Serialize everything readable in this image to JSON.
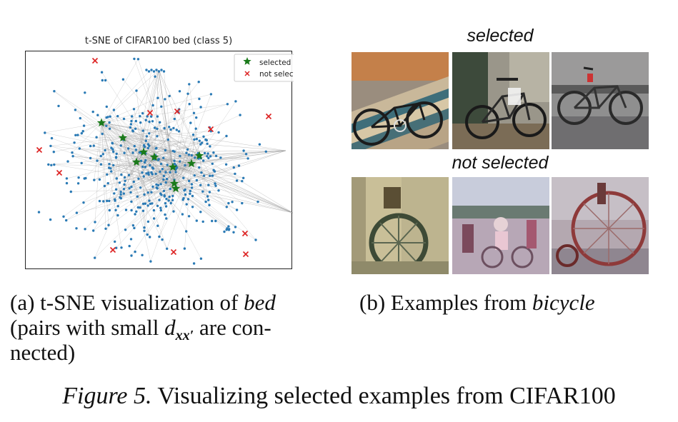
{
  "figure": {
    "plot_title": "t-SNE of CIFAR100 bed (class 5)",
    "legend": {
      "selected": "selected",
      "not_selected": "not selected"
    },
    "subcaption_a": {
      "label": "(a)",
      "text1": "t-SNE visualization of",
      "text1_italic": "bed",
      "line2_pre": "(pairs with small",
      "math_d": "d",
      "math_sub": "xx′",
      "line2_post": "are con-",
      "line3": "nected)"
    },
    "subcaption_b": {
      "label": "(b)",
      "text": "Examples from",
      "text_italic": "bicycle"
    },
    "selected_title": "selected",
    "not_selected_title": "not selected",
    "caption": {
      "label": "Figure 5.",
      "text": "Visualizing selected examples from CIFAR100"
    },
    "thumbnails_selected": [
      "bicycle-image-1",
      "bicycle-image-2",
      "bicycle-image-3"
    ],
    "thumbnails_not_selected": [
      "bicycle-image-4",
      "bicycle-image-5",
      "bicycle-image-6"
    ]
  },
  "chart_data": {
    "type": "scatter",
    "title": "t-SNE of CIFAR100 bed (class 5)",
    "xlabel": "",
    "ylabel": "",
    "legend_position": "top-right",
    "colors": {
      "points": "#2a7ab5",
      "selected": "#1a7a1a",
      "not_selected": "#dd2222",
      "edges": "#9a9a9a"
    },
    "series": [
      {
        "name": "selected",
        "marker": "star",
        "points": [
          [
            142,
            172
          ],
          [
            172,
            193
          ],
          [
            201,
            213
          ],
          [
            216,
            220
          ],
          [
            191,
            227
          ],
          [
            242,
            234
          ],
          [
            268,
            229
          ],
          [
            279,
            218
          ],
          [
            244,
            257
          ],
          [
            246,
            264
          ]
        ]
      },
      {
        "name": "not selected",
        "marker": "x",
        "points": [
          [
            133,
            85
          ],
          [
            210,
            158
          ],
          [
            248,
            156
          ],
          [
            376,
            163
          ],
          [
            295,
            181
          ],
          [
            55,
            210
          ],
          [
            83,
            242
          ],
          [
            343,
            327
          ],
          [
            158,
            350
          ],
          [
            243,
            353
          ],
          [
            344,
            356
          ]
        ]
      }
    ]
  }
}
